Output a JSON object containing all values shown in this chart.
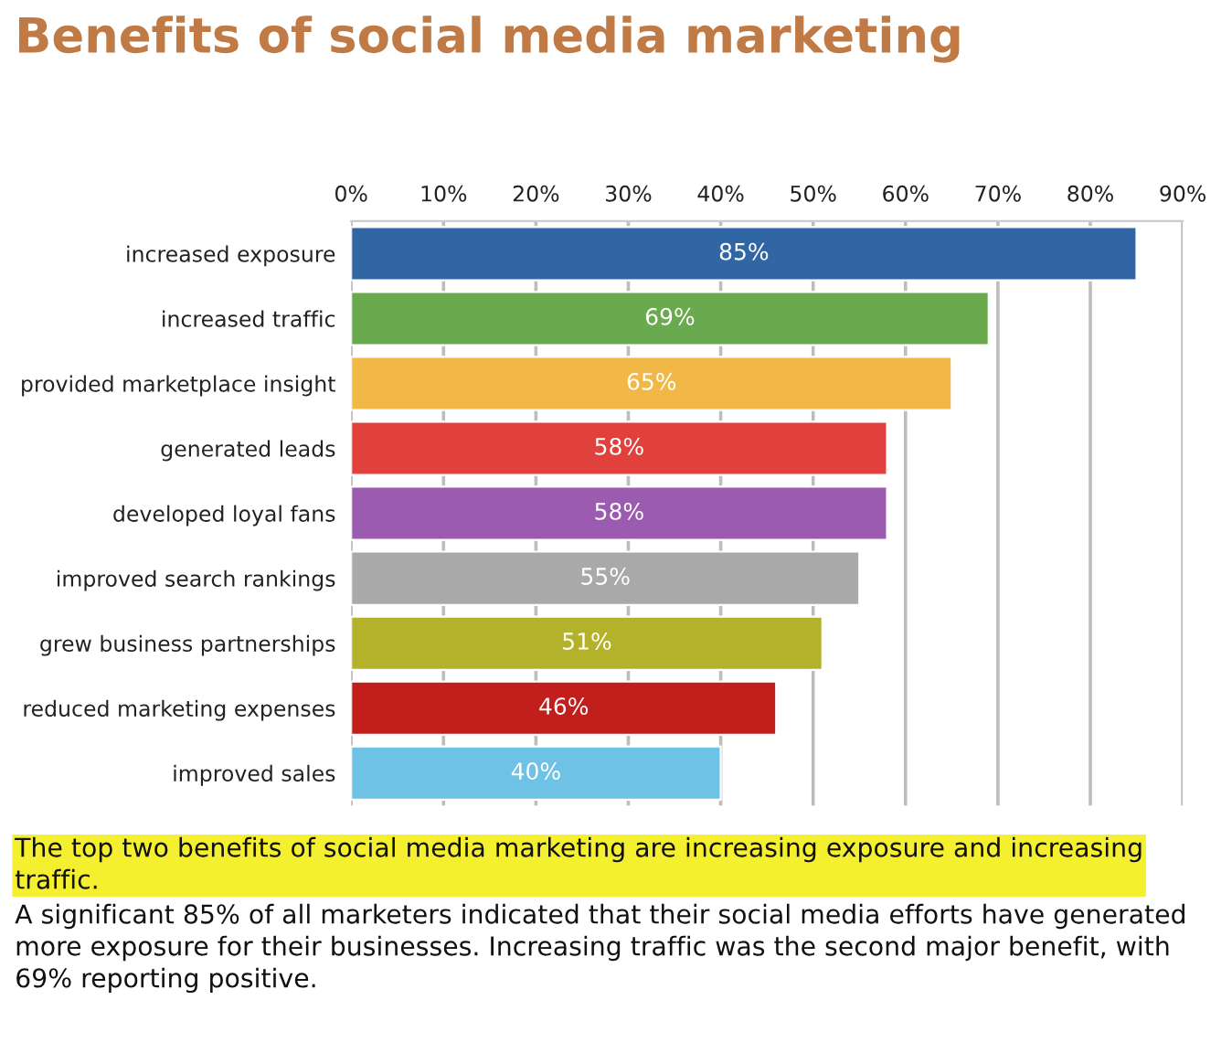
{
  "chart_data": {
    "type": "bar",
    "orientation": "horizontal",
    "title": "Benefits of social media marketing",
    "categories": [
      "increased exposure",
      "increased traffic",
      "provided marketplace insight",
      "generated leads",
      "developed loyal fans",
      "improved search rankings",
      "grew business partnerships",
      "reduced marketing expenses",
      "improved sales"
    ],
    "values": [
      85,
      69,
      65,
      58,
      58,
      55,
      51,
      46,
      40
    ],
    "colors": [
      "#2f66a3",
      "#6aaa4e",
      "#f1b747",
      "#e0413c",
      "#9a5bb0",
      "#a9a9a9",
      "#b3b22a",
      "#c11e1c",
      "#6ec2e6"
    ],
    "value_labels": [
      "85%",
      "69%",
      "65%",
      "58%",
      "58%",
      "55%",
      "51%",
      "46%",
      "40%"
    ],
    "xlim": [
      0,
      90
    ],
    "xticks": [
      {
        "value": 0,
        "label": "0%"
      },
      {
        "value": 10,
        "label": "10%"
      },
      {
        "value": 20,
        "label": "20%"
      },
      {
        "value": 30,
        "label": "30%"
      },
      {
        "value": 40,
        "label": "40%"
      },
      {
        "value": 50,
        "label": "50%"
      },
      {
        "value": 60,
        "label": "60%"
      },
      {
        "value": 70,
        "label": "70%"
      },
      {
        "value": 80,
        "label": "80%"
      },
      {
        "value": 90,
        "label": "90%"
      }
    ],
    "grid": "x",
    "annotations": [
      "The top two benefits of social media marketing are increasing exposure and increasing traffic.",
      "A significant 85% of all marketers indicated that their social media efforts have generated more exposure for their businesses. Increasing traffic was the second major benefit, with 69% reporting positive."
    ]
  }
}
